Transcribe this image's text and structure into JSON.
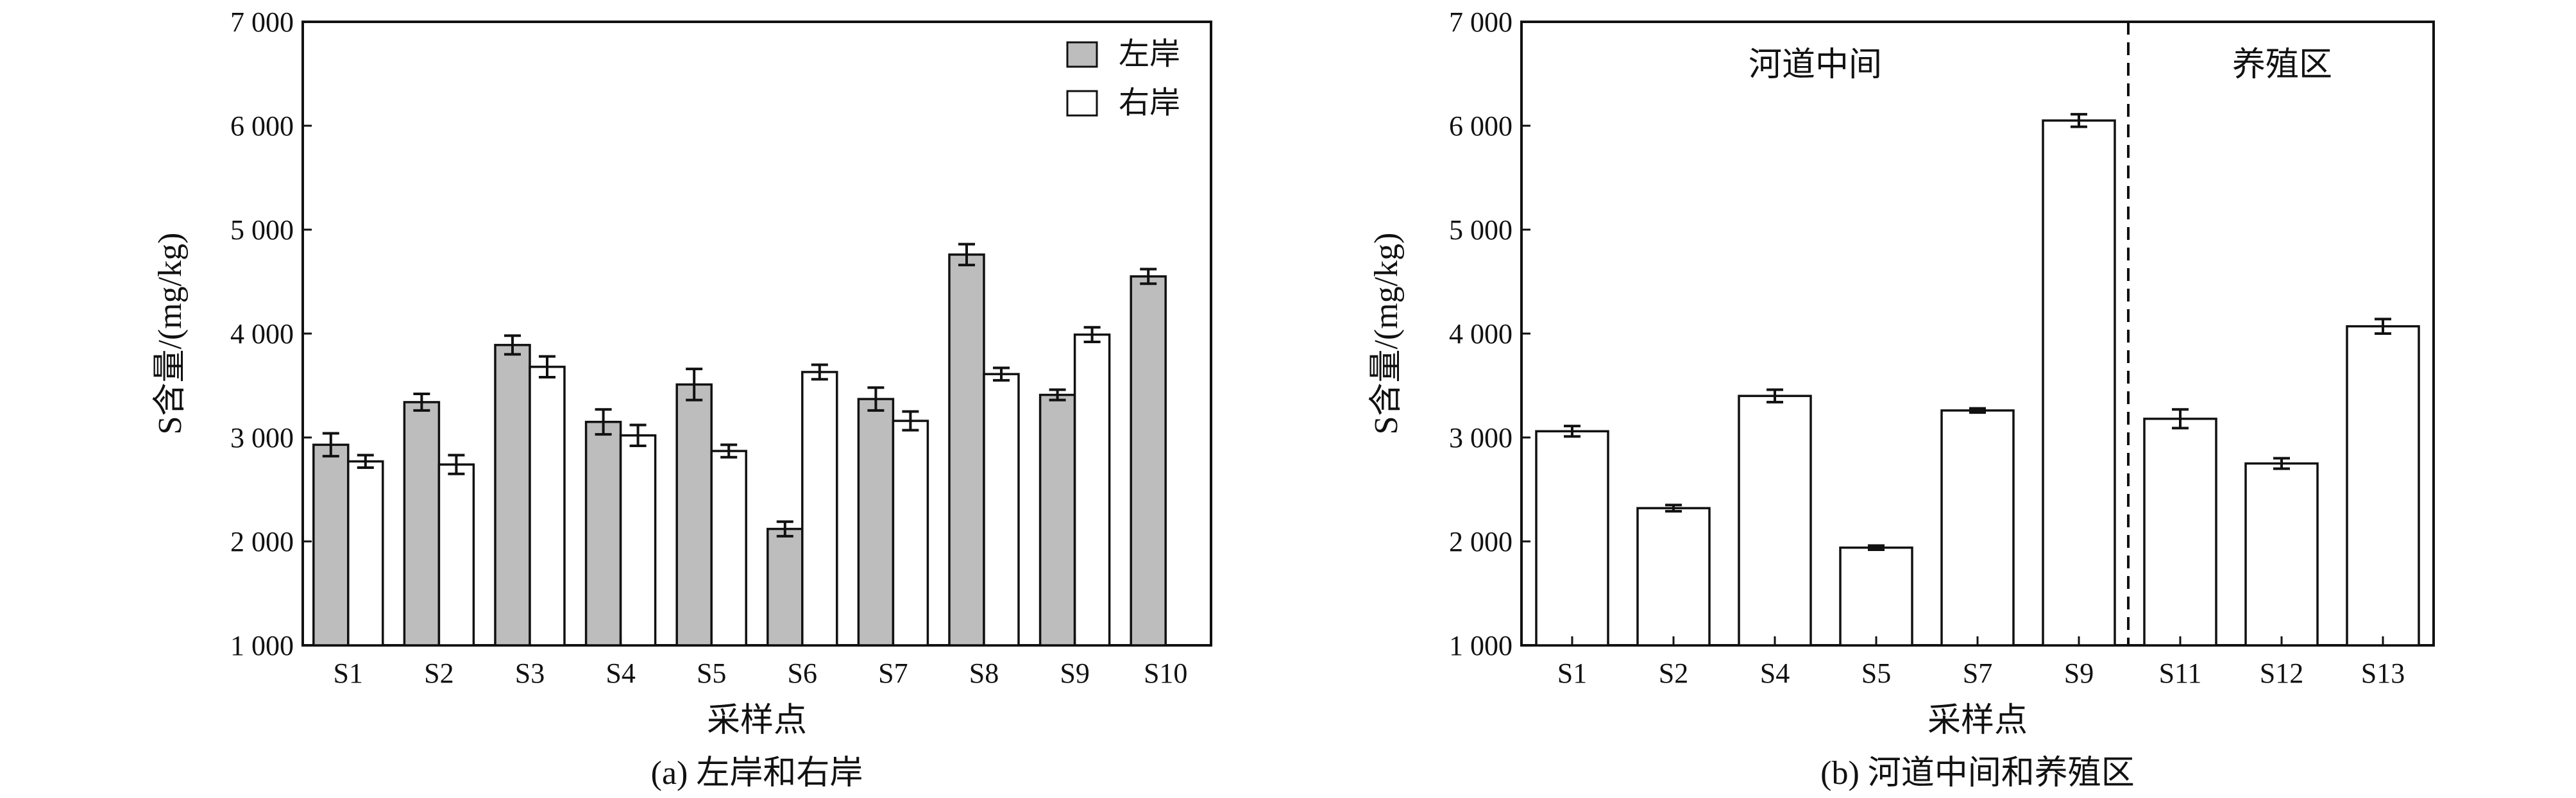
{
  "chart_data": [
    {
      "type": "bar",
      "caption": "(a) 左岸和右岸",
      "xlabel": "采样点",
      "ylabel": "S含量/(mg/kg)",
      "ylim": [
        1000,
        7000
      ],
      "yticks": [
        1000,
        2000,
        3000,
        4000,
        5000,
        6000,
        7000
      ],
      "ytick_labels": [
        "1 000",
        "2 000",
        "3 000",
        "4 000",
        "5 000",
        "6 000",
        "7 000"
      ],
      "categories": [
        "S1",
        "S2",
        "S3",
        "S4",
        "S5",
        "S6",
        "S7",
        "S8",
        "S9",
        "S10"
      ],
      "legend_position": "top-right",
      "grid": false,
      "series": [
        {
          "name": "左岸",
          "color": "#bdbdbd",
          "values": [
            2930,
            3340,
            3890,
            3150,
            3510,
            2120,
            3370,
            4760,
            3410,
            4550
          ],
          "errors": [
            110,
            80,
            90,
            120,
            150,
            70,
            110,
            100,
            50,
            70
          ]
        },
        {
          "name": "右岸",
          "color": "#ffffff",
          "values": [
            2770,
            2740,
            3680,
            3020,
            2870,
            3630,
            3160,
            3610,
            3990,
            null
          ],
          "errors": [
            60,
            90,
            100,
            100,
            60,
            70,
            90,
            60,
            70,
            null
          ]
        }
      ]
    },
    {
      "type": "bar",
      "caption": "(b) 河道中间和养殖区",
      "xlabel": "采样点",
      "ylabel": "S含量/(mg/kg)",
      "ylim": [
        1000,
        7000
      ],
      "yticks": [
        1000,
        2000,
        3000,
        4000,
        5000,
        6000,
        7000
      ],
      "ytick_labels": [
        "1 000",
        "2 000",
        "3 000",
        "4 000",
        "5 000",
        "6 000",
        "7 000"
      ],
      "categories": [
        "S1",
        "S2",
        "S4",
        "S5",
        "S7",
        "S9",
        "S11",
        "S12",
        "S13"
      ],
      "grid": false,
      "regions": [
        {
          "label": "河道中间",
          "start": 0,
          "end": 5
        },
        {
          "label": "养殖区",
          "start": 6,
          "end": 8
        }
      ],
      "series": [
        {
          "color": "#ffffff",
          "values": [
            3060,
            2320,
            3400,
            1940,
            3260,
            6050,
            3180,
            2750,
            4070
          ],
          "errors": [
            50,
            30,
            60,
            20,
            20,
            60,
            90,
            50,
            70
          ]
        }
      ]
    }
  ]
}
